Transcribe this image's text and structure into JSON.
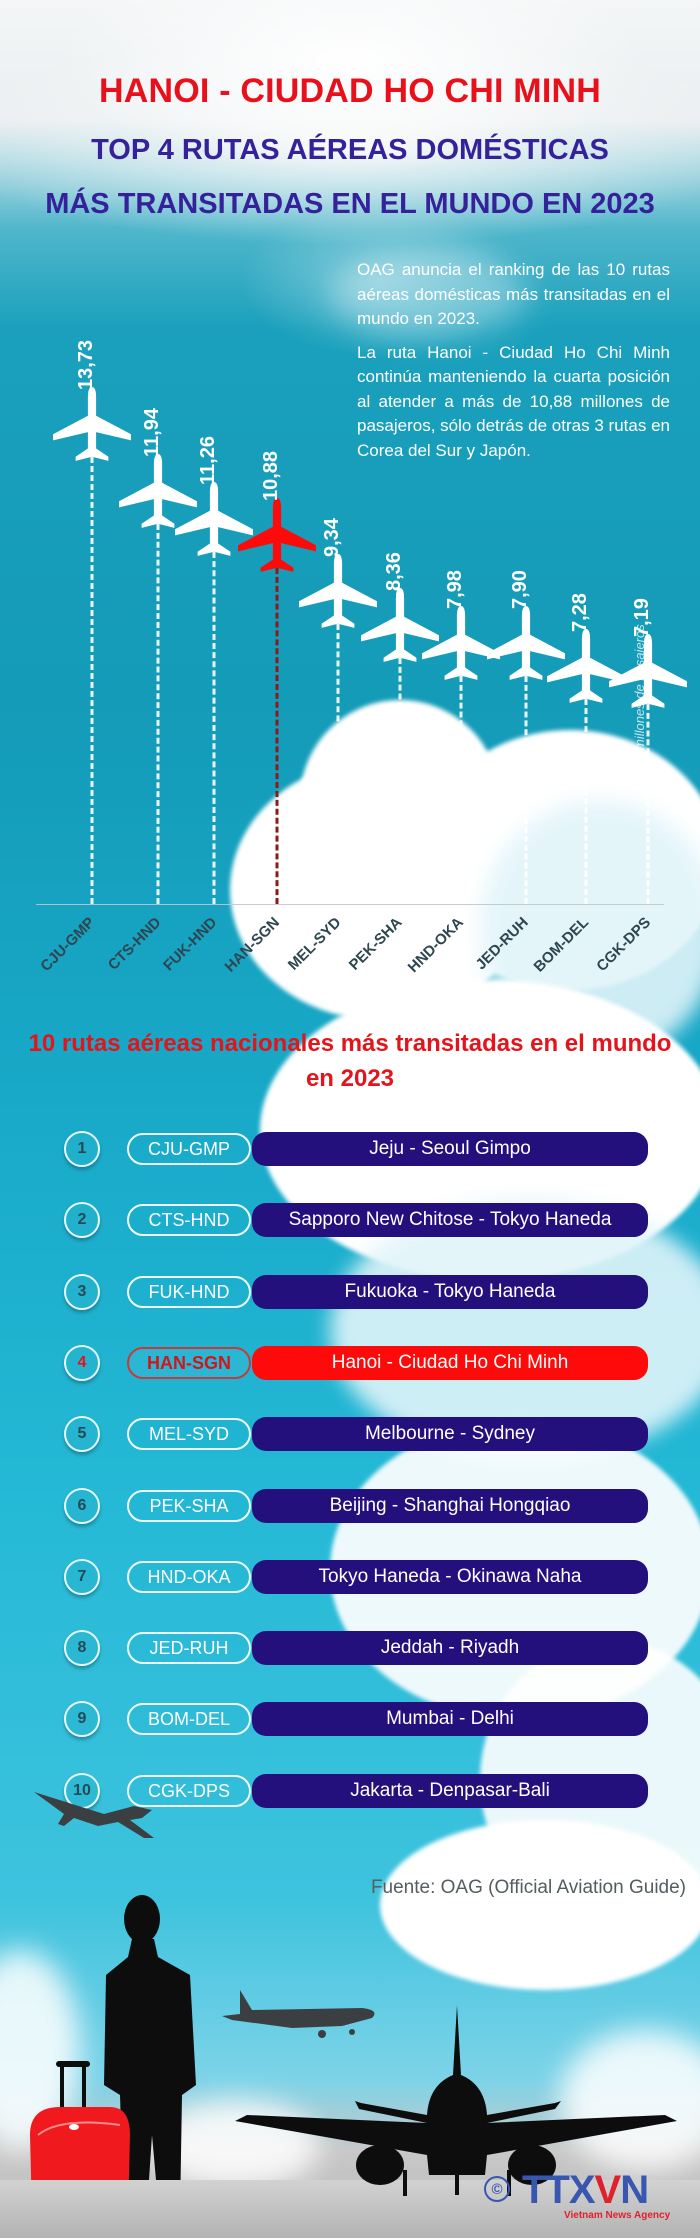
{
  "header": {
    "title_line1": "HANOI - CIUDAD HO CHI MINH",
    "title_line2": "TOP 4 RUTAS AÉREAS DOMÉSTICAS",
    "title_line3": "MÁS TRANSITADAS EN EL MUNDO EN 2023"
  },
  "intro": {
    "paragraph1": "OAG anuncia el ranking de las 10 rutas aéreas domésticas más transitadas en el mundo en 2023.",
    "paragraph2": "La ruta Hanoi - Ciudad Ho Chi Minh continúa manteniendo la cuarta posición al atender a más de 10,88 millones de pasajeros, sólo detrás de otras 3 rutas en Corea del Sur y Japón."
  },
  "colors": {
    "highlight": "#ff0a0a",
    "title_red": "#e8101a",
    "title_purple": "#35229a",
    "pill_navy": "#23107d",
    "sky": "#17a6c4"
  },
  "chart_data": {
    "type": "bar",
    "title": "TOP 4 RUTAS AÉREAS DOMÉSTICAS MÁS TRANSITADAS EN EL MUNDO EN 2023",
    "xlabel": "",
    "ylabel": "millones de pasajeros",
    "categories": [
      "CJU-GMP",
      "CTS-HND",
      "FUK-HND",
      "HAN-SGN",
      "MEL-SYD",
      "PEK-SHA",
      "HND-OKA",
      "JED-RUH",
      "BOM-DEL",
      "CGK-DPS"
    ],
    "values": [
      13.73,
      11.94,
      11.26,
      10.88,
      9.34,
      8.36,
      7.98,
      7.9,
      7.28,
      7.19
    ],
    "value_labels": [
      "13,73",
      "11,94",
      "11,26",
      "10,88",
      "9,34",
      "8,36",
      "7,98",
      "7,90",
      "7,28",
      "7,19"
    ],
    "highlighted_category": "HAN-SGN",
    "marker": "airplane-icon",
    "grid": false,
    "legend": null
  },
  "chart": {
    "unit_label": "millones de pasajeros"
  },
  "list": {
    "title": "10 rutas aéreas nacionales más transitadas en el mundo en 2023",
    "items": [
      {
        "rank": "1",
        "code": "CJU-GMP",
        "name": "Jeju - Seoul Gimpo"
      },
      {
        "rank": "2",
        "code": "CTS-HND",
        "name": "Sapporo New Chitose - Tokyo Haneda"
      },
      {
        "rank": "3",
        "code": "FUK-HND",
        "name": "Fukuoka - Tokyo Haneda"
      },
      {
        "rank": "4",
        "code": "HAN-SGN",
        "name": "Hanoi - Ciudad Ho Chi Minh"
      },
      {
        "rank": "5",
        "code": "MEL-SYD",
        "name": "Melbourne - Sydney"
      },
      {
        "rank": "6",
        "code": "PEK-SHA",
        "name": "Beijing - Shanghai Hongqiao"
      },
      {
        "rank": "7",
        "code": "HND-OKA",
        "name": "Tokyo Haneda - Okinawa Naha"
      },
      {
        "rank": "8",
        "code": "JED-RUH",
        "name": "Jeddah - Riyadh"
      },
      {
        "rank": "9",
        "code": "BOM-DEL",
        "name": "Mumbai - Delhi"
      },
      {
        "rank": "10",
        "code": "CGK-DPS",
        "name": "Jakarta - Denpasar-Bali"
      }
    ]
  },
  "footer": {
    "source": "Fuente:  OAG (Official Aviation Guide)",
    "logo_copyright": "©",
    "logo_main_a": "TTX",
    "logo_main_v": "V",
    "logo_main_b": "N",
    "logo_sub": "Vietnam News Agency"
  }
}
